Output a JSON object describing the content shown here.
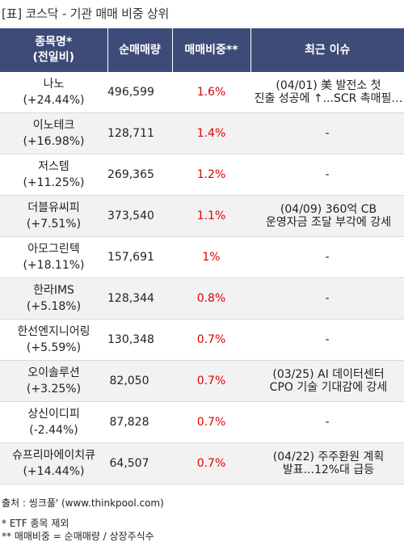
{
  "title": "[표] 코스닥 - 기관 매매 비중 상위",
  "headers": {
    "name_line1": "종목명*",
    "name_line2": "(전일비)",
    "volume": "순매매량",
    "ratio": "매매비중**",
    "issue": "최근 이슈"
  },
  "rows": [
    {
      "name": "나노",
      "change": "(+24.44%)",
      "volume": "496,599",
      "ratio": "1.6%",
      "issue_line1": "(04/01) 美 발전소 첫",
      "issue_line2": "진출 성공에 ↑...SCR 촉매필…"
    },
    {
      "name": "이노테크",
      "change": "(+16.98%)",
      "volume": "128,711",
      "ratio": "1.4%",
      "issue_line1": "-",
      "issue_line2": ""
    },
    {
      "name": "저스템",
      "change": "(+11.25%)",
      "volume": "269,365",
      "ratio": "1.2%",
      "issue_line1": "-",
      "issue_line2": ""
    },
    {
      "name": "더블유씨피",
      "change": "(+7.51%)",
      "volume": "373,540",
      "ratio": "1.1%",
      "issue_line1": "(04/09) 360억 CB",
      "issue_line2": "운영자금 조달 부각에 강세"
    },
    {
      "name": "아모그린텍",
      "change": "(+18.11%)",
      "volume": "157,691",
      "ratio": "1%",
      "issue_line1": "-",
      "issue_line2": ""
    },
    {
      "name": "한라IMS",
      "change": "(+5.18%)",
      "volume": "128,344",
      "ratio": "0.8%",
      "issue_line1": "-",
      "issue_line2": ""
    },
    {
      "name": "한선엔지니어링",
      "change": "(+5.59%)",
      "volume": "130,348",
      "ratio": "0.7%",
      "issue_line1": "-",
      "issue_line2": ""
    },
    {
      "name": "오이솔루션",
      "change": "(+3.25%)",
      "volume": "82,050",
      "ratio": "0.7%",
      "issue_line1": "(03/25) AI 데이터센터",
      "issue_line2": "CPO 기술 기대감에 강세"
    },
    {
      "name": "상신이디피",
      "change": "(-2.44%)",
      "volume": "87,828",
      "ratio": "0.7%",
      "issue_line1": "-",
      "issue_line2": ""
    },
    {
      "name": "슈프리마에이치큐",
      "change": "(+14.44%)",
      "volume": "64,507",
      "ratio": "0.7%",
      "issue_line1": "(04/22) 주주환원 계획",
      "issue_line2": "발표...12%대 급등"
    }
  ],
  "footer": {
    "source": "출처 : 씽크풀' (www.thinkpool.com)",
    "note1": "* ETF 종목 제외",
    "note2": "** 매매비중 = 순매매량 / 상장주식수"
  }
}
